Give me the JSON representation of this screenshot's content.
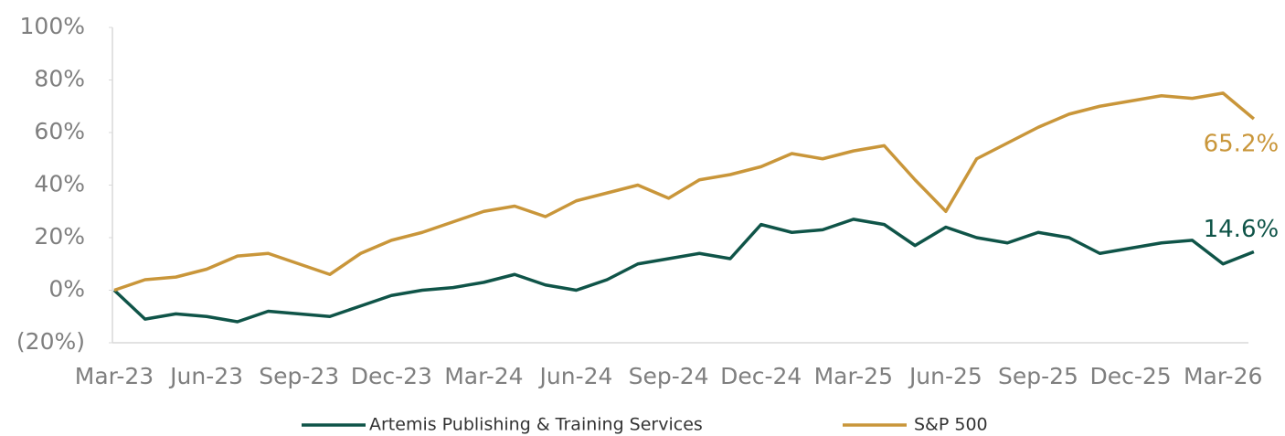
{
  "chart_data": {
    "type": "line",
    "categories": [
      "Mar-23",
      null,
      null,
      "Jun-23",
      null,
      null,
      "Sep-23",
      null,
      null,
      "Dec-23",
      null,
      null,
      "Mar-24",
      null,
      null,
      "Jun-24",
      null,
      null,
      "Sep-24",
      null,
      null,
      "Dec-24",
      null,
      null,
      "Mar-25",
      null,
      null,
      "Jun-25",
      null,
      null,
      "Sep-25",
      null,
      null,
      "Dec-25",
      null,
      null,
      "Mar-26",
      null
    ],
    "series": [
      {
        "name": "Artemis Publishing & Training Services",
        "color": "#0f5448",
        "values": [
          0,
          -11,
          -9,
          -10,
          -12,
          -8,
          -9,
          -10,
          -6,
          -2,
          0,
          1,
          3,
          6,
          2,
          0,
          4,
          10,
          12,
          14,
          12,
          25,
          22,
          23,
          27,
          25,
          17,
          24,
          20,
          18,
          22,
          20,
          14,
          16,
          18,
          19,
          10,
          14.6
        ],
        "value_labels": [
          null,
          null,
          null,
          null,
          null,
          null,
          null,
          null,
          null,
          null,
          null,
          null,
          null,
          null,
          null,
          null,
          null,
          null,
          null,
          null,
          null,
          null,
          null,
          null,
          null,
          null,
          null,
          null,
          null,
          null,
          null,
          null,
          null,
          null,
          null,
          null,
          null,
          "14.6%"
        ]
      },
      {
        "name": "S&P 500",
        "color": "#c9963a",
        "values": [
          0,
          4,
          5,
          8,
          13,
          14,
          10,
          6,
          14,
          19,
          22,
          26,
          30,
          32,
          28,
          34,
          37,
          40,
          35,
          42,
          44,
          47,
          52,
          50,
          53,
          55,
          42,
          30,
          50,
          56,
          62,
          67,
          70,
          72,
          74,
          73,
          75,
          65.2
        ],
        "value_labels": [
          null,
          null,
          null,
          null,
          null,
          null,
          null,
          null,
          null,
          null,
          null,
          null,
          null,
          null,
          null,
          null,
          null,
          null,
          null,
          null,
          null,
          null,
          null,
          null,
          null,
          null,
          null,
          null,
          null,
          null,
          null,
          null,
          null,
          null,
          null,
          null,
          null,
          "65.2%"
        ]
      }
    ],
    "ylim": [
      -20,
      100
    ],
    "yticks": [
      {
        "value": -20,
        "label": "(20%)"
      },
      {
        "value": 0,
        "label": "0%"
      },
      {
        "value": 20,
        "label": "20%"
      },
      {
        "value": 40,
        "label": "40%"
      },
      {
        "value": 60,
        "label": "60%"
      },
      {
        "value": 80,
        "label": "80%"
      },
      {
        "value": 100,
        "label": "100%"
      }
    ],
    "legend": "bottom"
  }
}
